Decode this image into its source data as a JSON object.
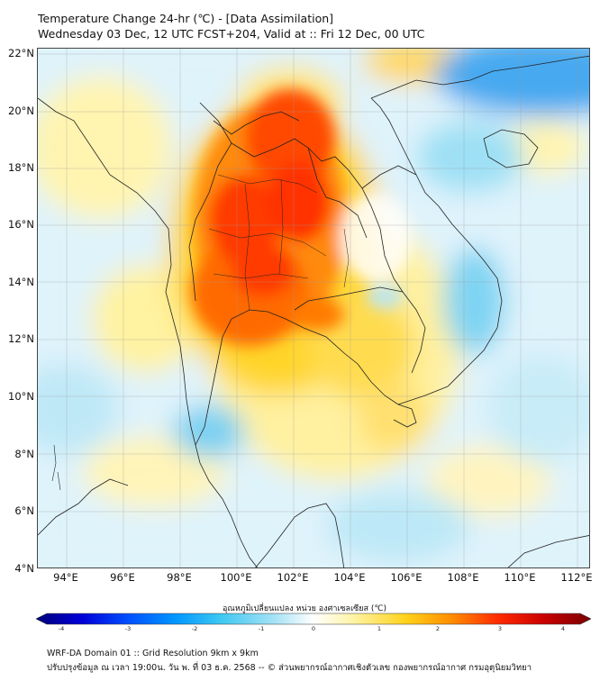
{
  "header": {
    "title_line1": "Temperature Change 24-hr (℃) - [Data Assimilation]",
    "title_line2": "Wednesday 03 Dec, 12 UTC FCST+204, Valid at :: Fri 12 Dec, 00 UTC"
  },
  "map": {
    "lat_ticks": [
      "22°N",
      "20°N",
      "18°N",
      "16°N",
      "14°N",
      "12°N",
      "10°N",
      "8°N",
      "6°N",
      "4°N"
    ],
    "lon_ticks": [
      "94°E",
      "96°E",
      "98°E",
      "100°E",
      "102°E",
      "104°E",
      "106°E",
      "108°E",
      "110°E",
      "112°E"
    ]
  },
  "colorbar": {
    "label": "อุณหภูมิเปลี่ยนแปลง หน่วย องศาเซลเซียส (℃)",
    "ticks": [
      "-4",
      "-3",
      "-2",
      "-1",
      "0",
      "1",
      "2",
      "3",
      "4"
    ],
    "colors": [
      "#00007a",
      "#0000d8",
      "#0050ff",
      "#0096ff",
      "#3ec8f2",
      "#a6e2f6",
      "#ffffff",
      "#fff4a8",
      "#ffd21a",
      "#ff8c00",
      "#ff2a00",
      "#c80000",
      "#7a0000"
    ]
  },
  "footer": {
    "line1": "WRF-DA Domain 01 :: Grid Resolution 9km x 9km",
    "line2": "ปรับปรุงข้อมูล ณ เวลา 19:00น. วัน พ. ที่ 03 ธ.ค. 2568 -- © ส่วนพยากรณ์อากาศเชิงตัวเลข กองพยากรณ์อากาศ กรมอุตุนิยมวิทยา"
  }
}
